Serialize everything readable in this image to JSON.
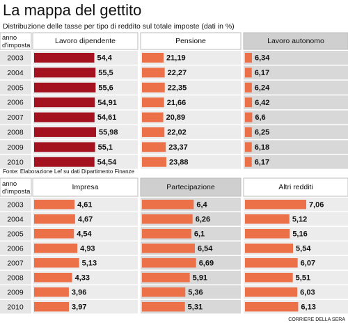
{
  "title": "La mappa del gettito",
  "subtitle": "Distribuzione delle tasse per tipo di reddito sul totale imposte (dati in %)",
  "source": "Fonte: Elaborazione Lef su dati Dipartimento Finanze",
  "credit": "CORRIERE DELLA SERA",
  "chart_data": [
    {
      "type": "bar",
      "orientation": "horizontal",
      "category_label": "anno\nd'imposta",
      "categories": [
        "2003",
        "2004",
        "2005",
        "2006",
        "2007",
        "2008",
        "2009",
        "2010"
      ],
      "series": [
        {
          "name": "Lavoro dipendente",
          "color": "#a3121e",
          "values": [
            54.4,
            55.5,
            55.6,
            54.91,
            54.61,
            55.98,
            55.1,
            54.54
          ],
          "value_labels": [
            "54,4",
            "55,5",
            "55,6",
            "54,91",
            "54,61",
            "55,98",
            "55,1",
            "54,54"
          ]
        },
        {
          "name": "Pensione",
          "color": "#ec7048",
          "values": [
            21.19,
            22.27,
            22.35,
            21.66,
            20.89,
            22.02,
            23.37,
            23.88
          ],
          "value_labels": [
            "21,19",
            "22,27",
            "22,35",
            "21,66",
            "20,89",
            "22,02",
            "23,37",
            "23,88"
          ]
        },
        {
          "name": "Lavoro autonomo",
          "color": "#ec7048",
          "values": [
            6.34,
            6.17,
            6.24,
            6.42,
            6.6,
            6.25,
            6.18,
            6.17
          ],
          "value_labels": [
            "6,34",
            "6,17",
            "6,24",
            "6,42",
            "6,6",
            "6,25",
            "6,18",
            "6,17"
          ]
        }
      ]
    },
    {
      "type": "bar",
      "orientation": "horizontal",
      "category_label": "anno\nd'imposta",
      "categories": [
        "2003",
        "2004",
        "2005",
        "2006",
        "2007",
        "2008",
        "2009",
        "2010"
      ],
      "series": [
        {
          "name": "Impresa",
          "color": "#ec7048",
          "values": [
            4.61,
            4.67,
            4.54,
            4.93,
            5.13,
            4.33,
            3.96,
            3.97
          ],
          "value_labels": [
            "4,61",
            "4,67",
            "4,54",
            "4,93",
            "5,13",
            "4,33",
            "3,96",
            "3,97"
          ]
        },
        {
          "name": "Partecipazione",
          "color": "#ec7048",
          "values": [
            6.4,
            6.26,
            6.1,
            6.54,
            6.69,
            5.91,
            5.36,
            5.31
          ],
          "value_labels": [
            "6,4",
            "6,26",
            "6,1",
            "6,54",
            "6,69",
            "5,91",
            "5,36",
            "5,31"
          ]
        },
        {
          "name": "Altri redditi",
          "color": "#ec7048",
          "values": [
            7.06,
            5.12,
            5.16,
            5.54,
            6.07,
            5.51,
            6.03,
            6.13
          ],
          "value_labels": [
            "7,06",
            "5,12",
            "5,16",
            "5,54",
            "6,07",
            "5,51",
            "6,03",
            "6,13"
          ]
        }
      ]
    }
  ]
}
